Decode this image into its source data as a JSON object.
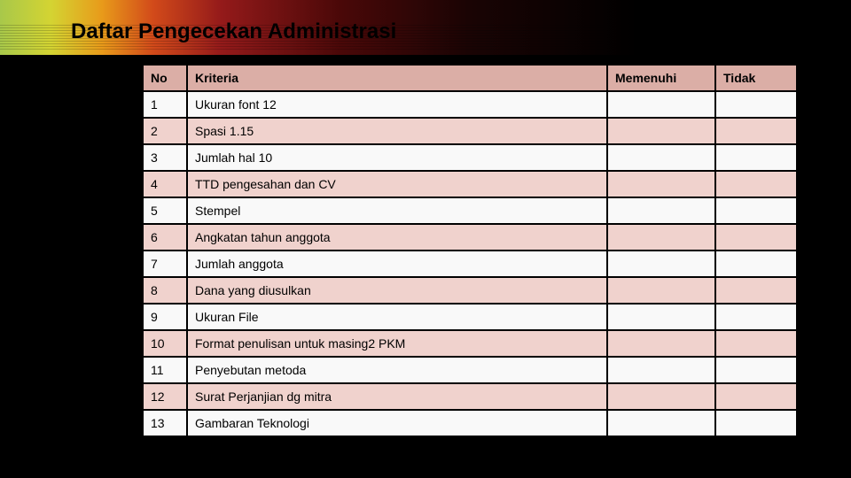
{
  "title": "Daftar Pengecekan Administrasi",
  "table": {
    "headers": {
      "no": "No",
      "kriteria": "Kriteria",
      "memenuhi": "Memenuhi",
      "tidak": "Tidak"
    },
    "rows": [
      {
        "no": "1",
        "kriteria": "Ukuran font 12",
        "memenuhi": "",
        "tidak": ""
      },
      {
        "no": "2",
        "kriteria": "Spasi 1.15",
        "memenuhi": "",
        "tidak": ""
      },
      {
        "no": "3",
        "kriteria": "Jumlah hal 10",
        "memenuhi": "",
        "tidak": ""
      },
      {
        "no": "4",
        "kriteria": "TTD pengesahan dan CV",
        "memenuhi": "",
        "tidak": ""
      },
      {
        "no": "5",
        "kriteria": "Stempel",
        "memenuhi": "",
        "tidak": ""
      },
      {
        "no": "6",
        "kriteria": "Angkatan tahun anggota",
        "memenuhi": "",
        "tidak": ""
      },
      {
        "no": "7",
        "kriteria": "Jumlah anggota",
        "memenuhi": "",
        "tidak": ""
      },
      {
        "no": "8",
        "kriteria": "Dana yang diusulkan",
        "memenuhi": "",
        "tidak": ""
      },
      {
        "no": "9",
        "kriteria": "Ukuran File",
        "memenuhi": "",
        "tidak": ""
      },
      {
        "no": "10",
        "kriteria": "Format penulisan untuk masing2 PKM",
        "memenuhi": "",
        "tidak": ""
      },
      {
        "no": "11",
        "kriteria": "Penyebutan metoda",
        "memenuhi": "",
        "tidak": ""
      },
      {
        "no": "12",
        "kriteria": "Surat Perjanjian dg mitra",
        "memenuhi": "",
        "tidak": ""
      },
      {
        "no": "13",
        "kriteria": "Gambaran Teknologi",
        "memenuhi": "",
        "tidak": ""
      }
    ]
  },
  "colors": {
    "header_bg": "#dbaea6",
    "row_light": "#f9f9f9",
    "row_pink": "#f0d2cd",
    "page_bg": "#000000"
  }
}
